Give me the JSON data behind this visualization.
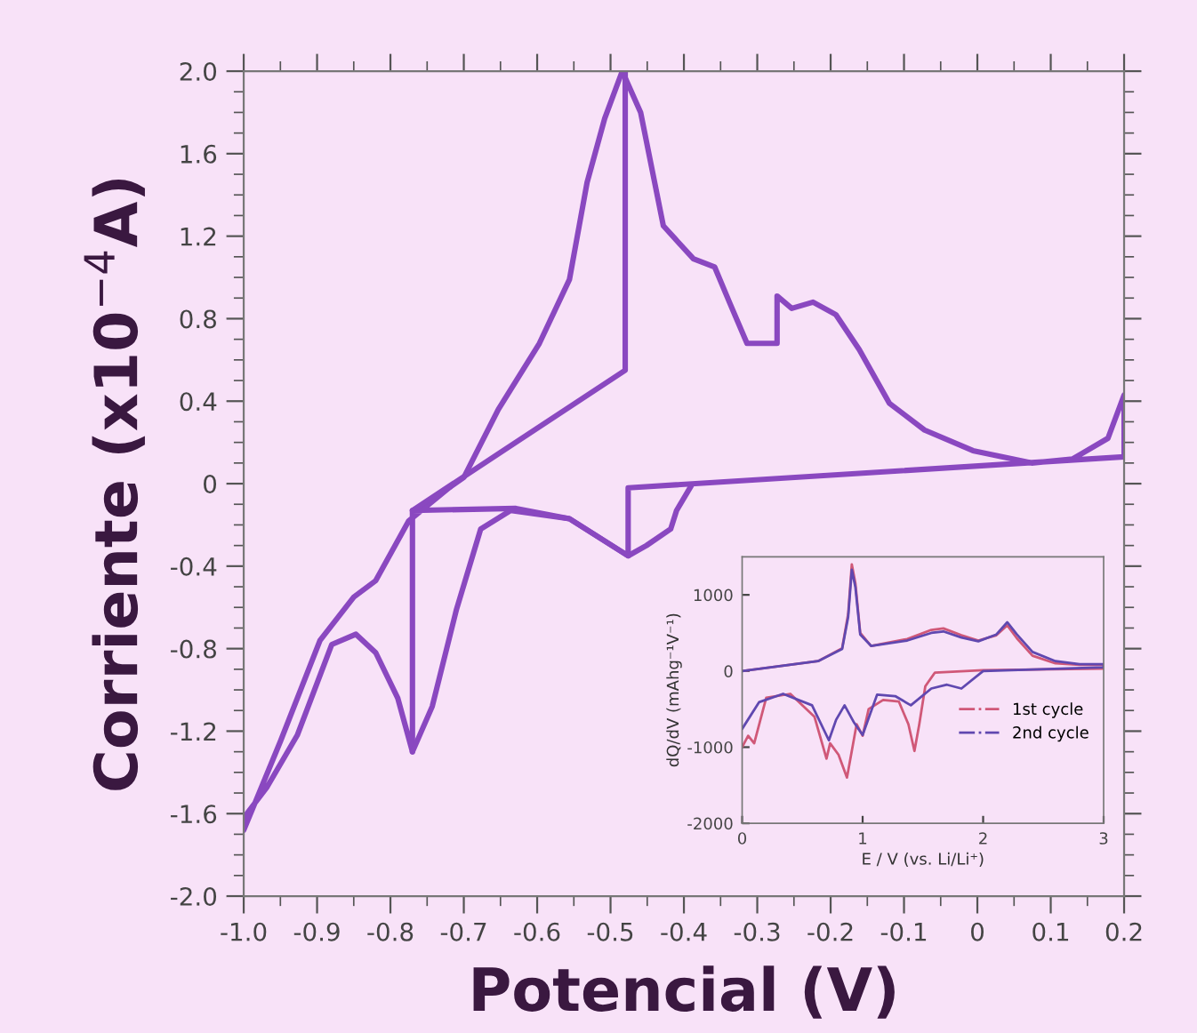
{
  "chart_data": [
    {
      "type": "line",
      "xlabel": "Potencial (V)",
      "ylabel": "Corriente (x10$^{−4}$A)",
      "xlim": [
        -1.0,
        0.2
      ],
      "ylim": [
        -2.0,
        2.0
      ],
      "xticks": [
        {
          "value": -1.0,
          "label": "-1.0"
        },
        -0.9,
        -0.8,
        -0.7,
        -0.6,
        -0.5,
        -0.4,
        -0.3,
        -0.2,
        -0.1,
        0,
        0.1,
        0.2
      ],
      "yticks": [
        {
          "value": -2.0,
          "label": "-2.0"
        },
        -1.6,
        -1.2,
        -0.8,
        -0.4,
        0,
        0.4,
        0.8,
        1.2,
        1.6,
        {
          "value": 2.0,
          "label": "2.0"
        }
      ],
      "grid": false,
      "legend": false,
      "series": [
        {
          "color": "#8a48c0",
          "x": [
            -1.0,
            -0.95,
            -0.896,
            -0.85,
            -0.82,
            -0.775,
            -0.72,
            -0.7,
            -0.653,
            -0.597,
            -0.556,
            -0.532,
            -0.508,
            -0.484,
            -0.459,
            -0.428,
            -0.387,
            -0.358,
            -0.338,
            -0.314,
            -0.273,
            -0.273,
            -0.253,
            -0.224,
            -0.193,
            -0.161,
            -0.12,
            -0.072,
            -0.006,
            0.074,
            0.13,
            0.178,
            0.2,
            0.2,
            -0.476,
            -0.476,
            -0.556,
            -0.629,
            -0.77,
            -0.77,
            -0.79,
            -0.82,
            -0.847,
            -0.88,
            -0.927,
            -0.968,
            -1.0
          ],
          "values": [
            -1.68,
            -1.25,
            -0.76,
            -0.55,
            -0.47,
            -0.18,
            -0.02,
            0.03,
            0.36,
            0.68,
            0.99,
            1.46,
            1.77,
            2.0,
            1.8,
            1.25,
            1.09,
            1.05,
            0.88,
            0.68,
            0.68,
            0.91,
            0.85,
            0.88,
            0.82,
            0.65,
            0.39,
            0.26,
            0.16,
            0.1,
            0.12,
            0.22,
            0.43,
            0.13,
            -0.02,
            -0.35,
            -0.17,
            -0.12,
            -0.13,
            -1.3,
            -1.04,
            -0.82,
            -0.73,
            -0.78,
            -1.22,
            -1.47,
            -1.62
          ]
        },
        {
          "color": "#8a48c0",
          "x": [
            -0.77,
            -0.48,
            -0.48
          ],
          "values": [
            -0.13,
            0.55,
            2.0
          ]
        },
        {
          "color": "#8a48c0",
          "x": [
            -0.77,
            -0.743,
            -0.71,
            -0.677,
            -0.636,
            -0.556,
            -0.476,
            -0.451,
            -0.418,
            -0.41,
            -0.39
          ],
          "values": [
            -1.3,
            -1.08,
            -0.61,
            -0.22,
            -0.13,
            -0.17,
            -0.35,
            -0.3,
            -0.22,
            -0.13,
            -0.01
          ]
        }
      ]
    },
    {
      "type": "line",
      "xlabel": "E / V (vs. Li/Li⁺)",
      "ylabel": "dQ/dV (mAhg⁻¹V⁻¹)",
      "xlim": [
        0,
        3
      ],
      "ylim": [
        -2000,
        1500
      ],
      "xticks": [
        0,
        1,
        2,
        3
      ],
      "yticks": [
        -2000,
        -1000,
        0,
        1000
      ],
      "grid": false,
      "legend": "right",
      "series": [
        {
          "name": "1st cycle",
          "color": "#d05878",
          "x": [
            0,
            0.63,
            0.83,
            0.88,
            0.91,
            0.94,
            0.98,
            1.07,
            1.37,
            1.57,
            1.67,
            1.82,
            1.96,
            2.11,
            2.2,
            2.28,
            2.41,
            2.6,
            2.8,
            3.0,
            3.0,
            2.0,
            1.6,
            1.52,
            1.47,
            1.43,
            1.38,
            1.3,
            1.17,
            1.05,
            1.0,
            0.95,
            0.87,
            0.8,
            0.73,
            0.7,
            0.6,
            0.4,
            0.2,
            0.1,
            0.05,
            0
          ],
          "values": [
            0,
            130,
            300,
            750,
            1400,
            1150,
            500,
            330,
            420,
            540,
            560,
            470,
            400,
            470,
            600,
            430,
            200,
            100,
            80,
            80,
            30,
            10,
            -20,
            -200,
            -700,
            -1050,
            -700,
            -400,
            -380,
            -500,
            -850,
            -700,
            -1400,
            -1100,
            -950,
            -1150,
            -600,
            -300,
            -350,
            -950,
            -850,
            -1000
          ]
        },
        {
          "name": "2nd cycle",
          "color": "#6048b0",
          "x": [
            0,
            0.63,
            0.83,
            0.88,
            0.91,
            0.94,
            0.98,
            1.07,
            1.37,
            1.57,
            1.67,
            1.82,
            1.96,
            2.11,
            2.2,
            2.28,
            2.41,
            2.6,
            2.8,
            3.0,
            3.0,
            2.0,
            1.82,
            1.7,
            1.57,
            1.4,
            1.27,
            1.12,
            1.0,
            0.93,
            0.85,
            0.78,
            0.72,
            0.58,
            0.34,
            0.14,
            0
          ],
          "values": [
            0,
            130,
            290,
            710,
            1330,
            1100,
            480,
            330,
            400,
            500,
            520,
            440,
            390,
            480,
            640,
            480,
            250,
            130,
            90,
            90,
            50,
            0,
            -230,
            -180,
            -230,
            -450,
            -330,
            -310,
            -840,
            -680,
            -450,
            -640,
            -910,
            -450,
            -300,
            -410,
            -760
          ]
        }
      ]
    }
  ]
}
